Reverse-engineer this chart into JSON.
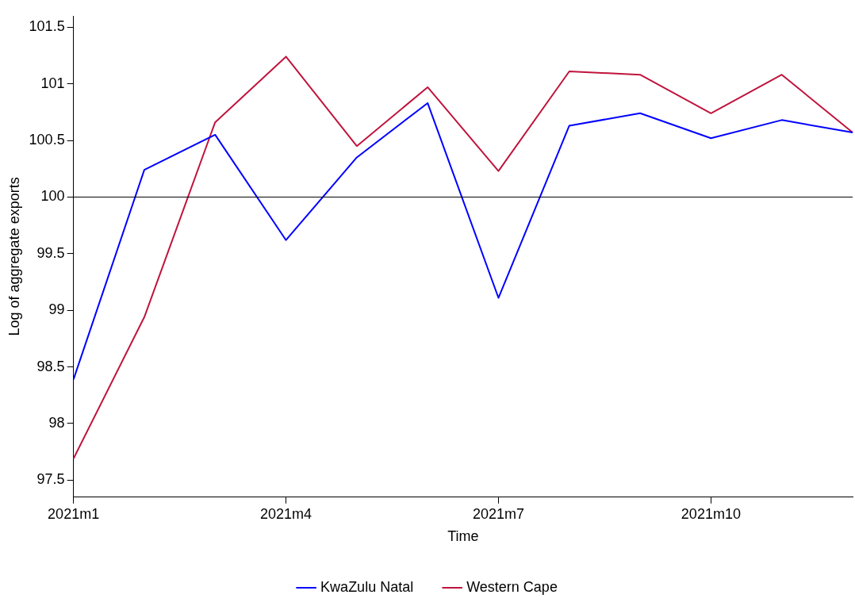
{
  "chart_data": {
    "type": "line",
    "xlabel": "Time",
    "ylabel": "Log of aggregate exports",
    "categories": [
      "2021m1",
      null,
      null,
      "2021m4",
      null,
      null,
      "2021m7",
      null,
      null,
      "2021m10",
      null,
      null
    ],
    "series": [
      {
        "name": "KwaZulu Natal",
        "color": "#0000ff",
        "values": [
          98.39,
          100.24,
          100.55,
          99.62,
          100.35,
          100.83,
          99.11,
          100.63,
          100.74,
          100.52,
          100.68,
          100.57
        ]
      },
      {
        "name": "Western Cape",
        "color": "#c0143c",
        "values": [
          97.69,
          98.94,
          100.66,
          101.24,
          100.45,
          100.97,
          100.23,
          101.11,
          101.08,
          100.74,
          101.08,
          100.57
        ]
      }
    ],
    "ylim": [
      97.35,
      101.6
    ],
    "yticks": [
      97.5,
      98,
      98.5,
      99,
      99.5,
      100,
      100.5,
      101,
      101.5
    ],
    "ref_lines": [
      {
        "axis": "y",
        "value": 100,
        "color": "#000000"
      }
    ],
    "grid": false,
    "legend": "bottom",
    "marker": "none",
    "line_style": "solid"
  }
}
